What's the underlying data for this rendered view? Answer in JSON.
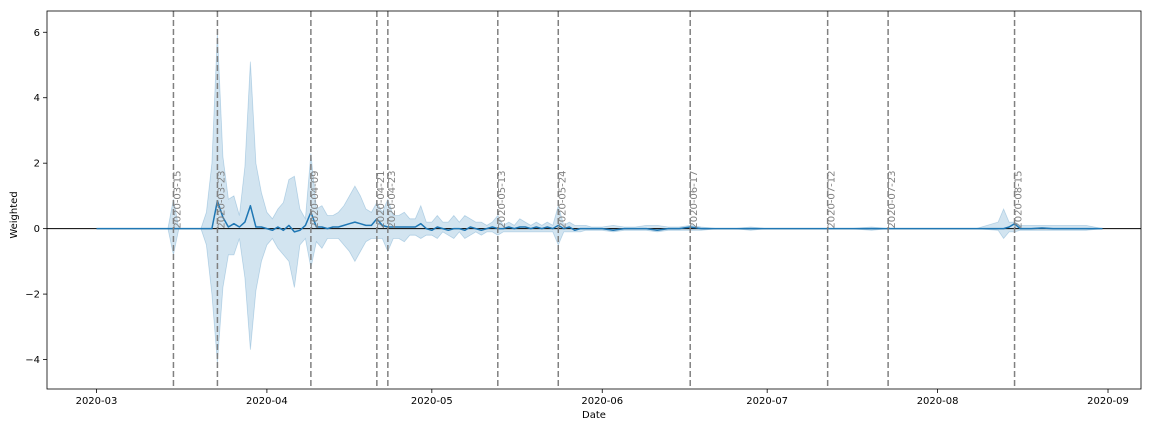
{
  "chart_data": {
    "type": "line",
    "xlabel": "Date",
    "ylabel": "Weighted",
    "x_ticks": [
      "2020-03",
      "2020-04",
      "2020-05",
      "2020-06",
      "2020-07",
      "2020-08",
      "2020-09"
    ],
    "y_ticks": [
      -4,
      -2,
      0,
      2,
      4,
      6
    ],
    "ylim": [
      -4.9,
      6.65
    ],
    "xlim": [
      "2020-02-21",
      "2020-09-07"
    ],
    "grid": false,
    "colors": {
      "line": "#1f77b4",
      "band": "#1f77b4",
      "zero_line": "#000000",
      "vlines": "#808080"
    },
    "vertical_lines": [
      "2020-03-15",
      "2020-03-23",
      "2020-04-09",
      "2020-04-21",
      "2020-04-23",
      "2020-05-13",
      "2020-05-24",
      "2020-06-17",
      "2020-07-12",
      "2020-07-23",
      "2020-08-15"
    ],
    "series": [
      {
        "x": [
          "2020-03-01",
          "2020-03-05",
          "2020-03-10",
          "2020-03-14",
          "2020-03-15",
          "2020-03-16",
          "2020-03-18",
          "2020-03-20",
          "2020-03-21",
          "2020-03-22",
          "2020-03-23",
          "2020-03-24",
          "2020-03-25",
          "2020-03-26",
          "2020-03-27",
          "2020-03-28",
          "2020-03-29",
          "2020-03-30",
          "2020-03-31",
          "2020-04-01",
          "2020-04-02",
          "2020-04-03",
          "2020-04-04",
          "2020-04-05",
          "2020-04-06",
          "2020-04-07",
          "2020-04-08",
          "2020-04-09",
          "2020-04-10",
          "2020-04-11",
          "2020-04-12",
          "2020-04-13",
          "2020-04-14",
          "2020-04-15",
          "2020-04-16",
          "2020-04-17",
          "2020-04-18",
          "2020-04-19",
          "2020-04-20",
          "2020-04-21",
          "2020-04-22",
          "2020-04-23",
          "2020-04-24",
          "2020-04-25",
          "2020-04-26",
          "2020-04-27",
          "2020-04-28",
          "2020-04-29",
          "2020-04-30",
          "2020-05-01",
          "2020-05-02",
          "2020-05-03",
          "2020-05-04",
          "2020-05-05",
          "2020-05-06",
          "2020-05-07",
          "2020-05-08",
          "2020-05-09",
          "2020-05-10",
          "2020-05-11",
          "2020-05-12",
          "2020-05-13",
          "2020-05-14",
          "2020-05-15",
          "2020-05-16",
          "2020-05-17",
          "2020-05-18",
          "2020-05-19",
          "2020-05-20",
          "2020-05-21",
          "2020-05-22",
          "2020-05-23",
          "2020-05-24",
          "2020-05-25",
          "2020-05-26",
          "2020-05-27",
          "2020-05-28",
          "2020-05-29",
          "2020-05-30",
          "2020-06-01",
          "2020-06-03",
          "2020-06-05",
          "2020-06-07",
          "2020-06-09",
          "2020-06-11",
          "2020-06-13",
          "2020-06-15",
          "2020-06-17",
          "2020-06-19",
          "2020-06-22",
          "2020-06-25",
          "2020-06-28",
          "2020-07-01",
          "2020-07-05",
          "2020-07-09",
          "2020-07-12",
          "2020-07-16",
          "2020-07-20",
          "2020-07-23",
          "2020-07-27",
          "2020-07-31",
          "2020-08-04",
          "2020-08-08",
          "2020-08-12",
          "2020-08-13",
          "2020-08-14",
          "2020-08-15",
          "2020-08-16",
          "2020-08-18",
          "2020-08-20",
          "2020-08-22",
          "2020-08-24",
          "2020-08-26",
          "2020-08-28",
          "2020-08-31"
        ],
        "y": [
          0,
          0,
          0,
          0,
          0,
          0,
          0,
          0,
          0,
          0,
          0.85,
          0.35,
          0.05,
          0.15,
          0.05,
          0.2,
          0.7,
          0.05,
          0.05,
          0,
          -0.05,
          0.05,
          -0.05,
          0.1,
          -0.1,
          -0.05,
          0.1,
          0.5,
          0.05,
          0.05,
          0,
          0.05,
          0.05,
          0.1,
          0.15,
          0.2,
          0.15,
          0.1,
          0.1,
          0.3,
          0.1,
          0.05,
          0.05,
          0.05,
          0.05,
          0.05,
          0.05,
          0.15,
          0,
          -0.05,
          0.05,
          0,
          -0.05,
          0,
          0,
          -0.05,
          0.05,
          0,
          -0.05,
          0,
          0.05,
          0,
          0,
          0.05,
          0,
          0.05,
          0.05,
          0,
          0.05,
          0,
          0.05,
          0,
          0.1,
          0,
          0.05,
          -0.05,
          0,
          0,
          0,
          0,
          -0.05,
          0,
          0,
          0,
          -0.05,
          0,
          0,
          0.05,
          0,
          0,
          0,
          0,
          0,
          0,
          0,
          0,
          0,
          0,
          0,
          0,
          0,
          0,
          0,
          0,
          0,
          0.05,
          0.15,
          0,
          0,
          0.02,
          0,
          0,
          0,
          0,
          0
        ],
        "lower": [
          0,
          0,
          0,
          0,
          -0.8,
          0,
          0,
          0,
          -0.5,
          -2.0,
          -4.1,
          -1.8,
          -0.8,
          -0.8,
          -0.3,
          -1.5,
          -3.7,
          -1.9,
          -1.0,
          -0.5,
          -0.3,
          -0.6,
          -0.8,
          -1.0,
          -1.8,
          -0.5,
          -0.3,
          -1.2,
          -0.4,
          -0.6,
          -0.3,
          -0.3,
          -0.3,
          -0.5,
          -0.7,
          -1.0,
          -0.7,
          -0.4,
          -0.3,
          -0.3,
          -0.3,
          -0.7,
          -0.3,
          -0.3,
          -0.4,
          -0.2,
          -0.2,
          -0.3,
          -0.2,
          -0.2,
          -0.3,
          -0.1,
          -0.2,
          -0.3,
          -0.1,
          -0.3,
          -0.2,
          -0.1,
          -0.2,
          -0.1,
          -0.1,
          -0.2,
          -0.1,
          -0.1,
          -0.1,
          -0.1,
          -0.1,
          -0.1,
          -0.1,
          -0.1,
          -0.1,
          -0.1,
          -0.5,
          -0.1,
          -0.1,
          -0.1,
          -0.1,
          -0.05,
          -0.05,
          -0.05,
          -0.1,
          -0.05,
          -0.05,
          -0.05,
          -0.1,
          -0.05,
          -0.05,
          -0.05,
          -0.05,
          0,
          0,
          -0.05,
          0,
          0,
          0,
          0,
          0,
          -0.05,
          0,
          0,
          0,
          0,
          0,
          -0.05,
          -0.3,
          -0.1,
          -0.1,
          -0.05,
          -0.05,
          -0.05,
          -0.05,
          -0.05,
          -0.05,
          -0.05,
          0
        ],
        "upper": [
          0,
          0,
          0,
          0,
          0.9,
          0,
          0,
          0,
          0.5,
          2.0,
          6.0,
          2.2,
          0.9,
          1.0,
          0.4,
          1.9,
          5.1,
          2.0,
          1.1,
          0.5,
          0.3,
          0.6,
          0.8,
          1.5,
          1.6,
          0.6,
          0.3,
          2.3,
          0.6,
          0.7,
          0.4,
          0.4,
          0.5,
          0.7,
          1.0,
          1.3,
          1.0,
          0.6,
          0.5,
          0.8,
          0.5,
          0.9,
          0.4,
          0.4,
          0.5,
          0.3,
          0.3,
          0.7,
          0.2,
          0.2,
          0.4,
          0.2,
          0.2,
          0.4,
          0.2,
          0.4,
          0.3,
          0.2,
          0.2,
          0.1,
          0.2,
          0.4,
          0.1,
          0.2,
          0.1,
          0.3,
          0.2,
          0.1,
          0.2,
          0.1,
          0.2,
          0.1,
          0.7,
          0.1,
          0.2,
          0.1,
          0.1,
          0.1,
          0.05,
          0.05,
          0.1,
          0.05,
          0.05,
          0.1,
          0.1,
          0.05,
          0.05,
          0.1,
          0.05,
          0,
          0,
          0.05,
          0,
          0,
          0,
          0,
          0,
          0.05,
          0,
          0,
          0,
          0,
          0,
          0.2,
          0.6,
          0.2,
          0.2,
          0.1,
          0.1,
          0.1,
          0.1,
          0.1,
          0.1,
          0.1,
          0
        ]
      }
    ]
  }
}
